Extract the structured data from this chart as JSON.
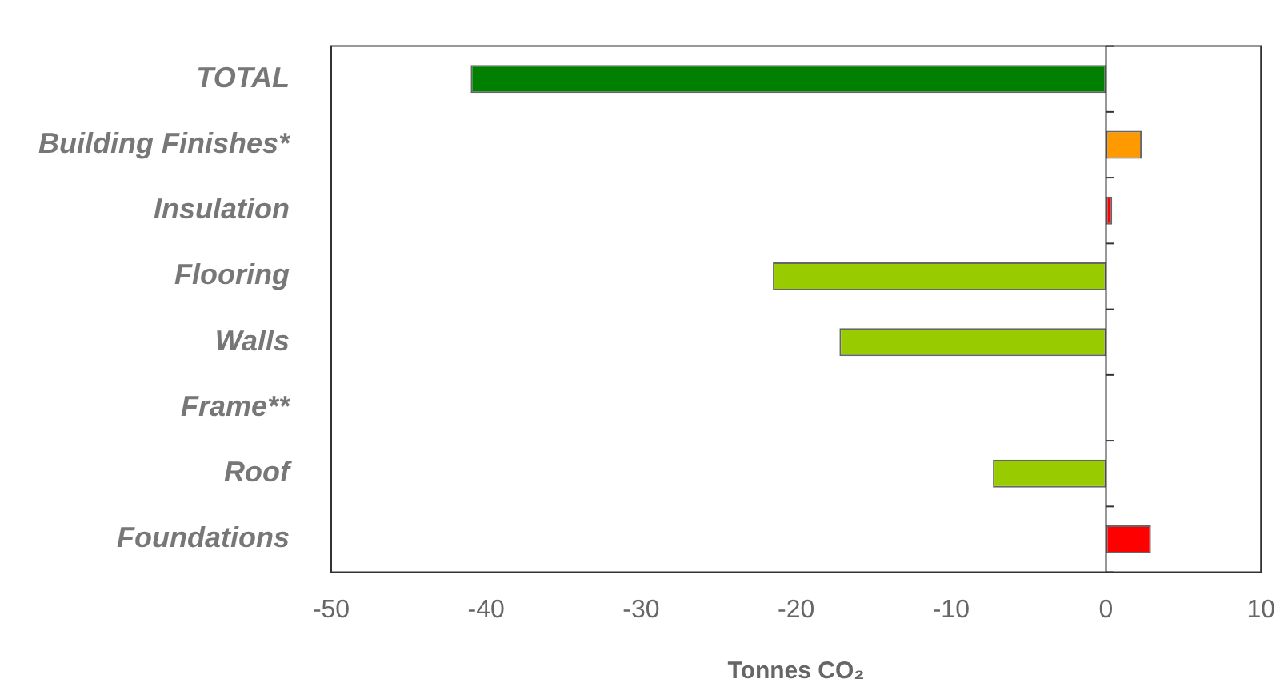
{
  "chart_data": {
    "type": "bar",
    "orientation": "horizontal",
    "xlabel": "Tonnes CO₂",
    "categories": [
      "TOTAL",
      "Building Finishes*",
      "Insulation",
      "Flooring",
      "Walls",
      "Frame**",
      "Roof",
      "Foundations"
    ],
    "values": [
      -41,
      2.3,
      0.4,
      -21.5,
      -17.2,
      0,
      -7.3,
      2.9
    ],
    "colors": [
      "#007f00",
      "#ff9900",
      "#ff0000",
      "#99cc00",
      "#99cc00",
      "#99cc00",
      "#99cc00",
      "#ff0000"
    ],
    "xlim": [
      -50,
      10
    ],
    "xticks": [
      -50,
      -40,
      -30,
      -20,
      -10,
      0,
      10
    ],
    "ref_lines": [
      {
        "axis": "x",
        "value": 0,
        "color": "#333333"
      }
    ],
    "grid": false,
    "legend": false
  }
}
